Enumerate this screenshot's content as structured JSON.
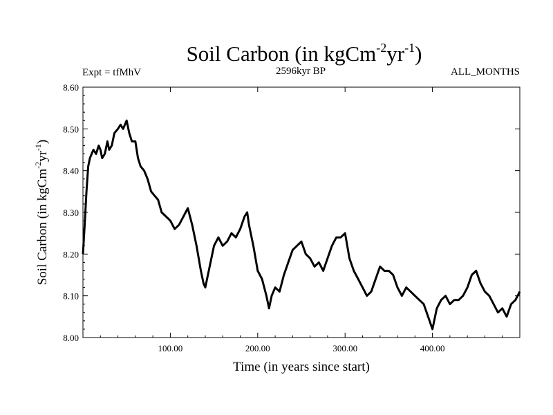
{
  "chart_data": {
    "type": "line",
    "title_main": "Soil Carbon (in kgCm",
    "title_exp1": "-2",
    "title_mid": "yr",
    "title_exp2": "-1",
    "title_end": ")",
    "subtitle_left": "Expt = tfMhV",
    "subtitle_center": "2596kyr BP",
    "subtitle_right": "ALL_MONTHS",
    "xlabel": "Time (in years since start)",
    "ylabel_main": "Soil Carbon (in kgCm",
    "ylabel_exp1": "-2",
    "ylabel_mid": "yr",
    "ylabel_exp2": "-1",
    "ylabel_end": ")",
    "xlim": [
      0,
      500
    ],
    "ylim": [
      8.0,
      8.6
    ],
    "x_ticks": [
      100,
      200,
      300,
      400
    ],
    "x_tick_labels": [
      "100.00",
      "200.00",
      "300.00",
      "400.00"
    ],
    "y_ticks": [
      8.0,
      8.1,
      8.2,
      8.3,
      8.4,
      8.5,
      8.6
    ],
    "y_tick_labels": [
      "8.00",
      "8.10",
      "8.20",
      "8.30",
      "8.40",
      "8.50",
      "8.60"
    ],
    "line_color": "#000000",
    "series": [
      {
        "name": "Soil Carbon",
        "x": [
          0,
          2,
          4,
          6,
          8,
          10,
          12,
          15,
          18,
          20,
          22,
          25,
          28,
          30,
          33,
          36,
          40,
          43,
          46,
          50,
          53,
          56,
          60,
          63,
          66,
          70,
          74,
          78,
          82,
          86,
          90,
          95,
          100,
          105,
          110,
          115,
          120,
          125,
          130,
          135,
          138,
          140,
          142,
          145,
          150,
          155,
          160,
          165,
          170,
          175,
          180,
          185,
          188,
          190,
          195,
          200,
          205,
          210,
          213,
          216,
          220,
          225,
          230,
          235,
          240,
          245,
          250,
          255,
          260,
          265,
          270,
          275,
          280,
          285,
          290,
          295,
          300,
          305,
          310,
          315,
          320,
          325,
          330,
          335,
          340,
          345,
          350,
          355,
          360,
          365,
          370,
          375,
          380,
          385,
          390,
          395,
          400,
          405,
          410,
          415,
          420,
          425,
          430,
          435,
          440,
          445,
          450,
          455,
          460,
          465,
          470,
          475,
          480,
          485,
          490,
          495,
          500
        ],
        "y": [
          8.2,
          8.27,
          8.35,
          8.41,
          8.43,
          8.44,
          8.45,
          8.44,
          8.46,
          8.45,
          8.43,
          8.44,
          8.47,
          8.45,
          8.46,
          8.49,
          8.5,
          8.51,
          8.5,
          8.52,
          8.49,
          8.47,
          8.47,
          8.43,
          8.41,
          8.4,
          8.38,
          8.35,
          8.34,
          8.33,
          8.3,
          8.29,
          8.28,
          8.26,
          8.27,
          8.29,
          8.31,
          8.27,
          8.22,
          8.16,
          8.13,
          8.12,
          8.14,
          8.17,
          8.22,
          8.24,
          8.22,
          8.23,
          8.25,
          8.24,
          8.26,
          8.29,
          8.3,
          8.27,
          8.22,
          8.16,
          8.14,
          8.1,
          8.07,
          8.1,
          8.12,
          8.11,
          8.15,
          8.18,
          8.21,
          8.22,
          8.23,
          8.2,
          8.19,
          8.17,
          8.18,
          8.16,
          8.19,
          8.22,
          8.24,
          8.24,
          8.25,
          8.19,
          8.16,
          8.14,
          8.12,
          8.1,
          8.11,
          8.14,
          8.17,
          8.16,
          8.16,
          8.15,
          8.12,
          8.1,
          8.12,
          8.11,
          8.1,
          8.09,
          8.08,
          8.05,
          8.02,
          8.07,
          8.09,
          8.1,
          8.08,
          8.09,
          8.09,
          8.1,
          8.12,
          8.15,
          8.16,
          8.13,
          8.11,
          8.1,
          8.08,
          8.06,
          8.07,
          8.05,
          8.08,
          8.09,
          8.11
        ]
      }
    ]
  }
}
